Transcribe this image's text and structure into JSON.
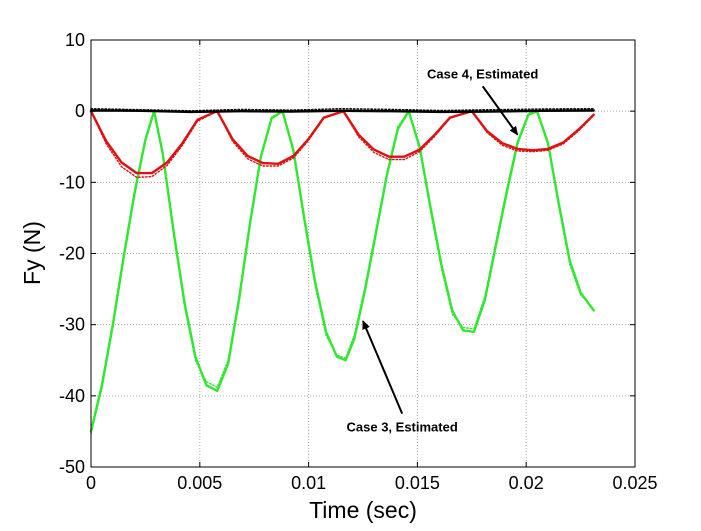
{
  "chart_data": {
    "type": "line",
    "title": "",
    "xlabel": "Time (sec)",
    "ylabel": "Fy (N)",
    "xlim": [
      0,
      0.025
    ],
    "ylim": [
      -50,
      10
    ],
    "xticks": [
      "0",
      "0.005",
      "0.01",
      "0.015",
      "0.02",
      "0.025"
    ],
    "yticks": [
      "10",
      "0",
      "-10",
      "-20",
      "-30",
      "-40",
      "-50"
    ],
    "grid": "dotted",
    "legend": "none",
    "colors": {
      "case3": "#33e633",
      "case4": "#dd1111",
      "black": "#000000",
      "arrow": "#000000"
    },
    "series": [
      {
        "color_key": "case3",
        "style": "solid",
        "x": [
          0.0,
          0.0005,
          0.001,
          0.0015,
          0.002,
          0.0025,
          0.0029,
          0.0033,
          0.0038,
          0.0043,
          0.0048,
          0.0053,
          0.0058,
          0.0063,
          0.0068,
          0.0073,
          0.0078,
          0.0083,
          0.0088,
          0.0093,
          0.0098,
          0.0103,
          0.0108,
          0.0113,
          0.0117,
          0.0121,
          0.0126,
          0.0131,
          0.0136,
          0.0141,
          0.0146,
          0.0151,
          0.0156,
          0.0161,
          0.0166,
          0.0171,
          0.0176,
          0.0181,
          0.0186,
          0.0191,
          0.0196,
          0.0201,
          0.0205,
          0.021,
          0.0215,
          0.022,
          0.0225,
          0.0231
        ],
        "y": [
          -45.0,
          -38.5,
          -30.0,
          -20.5,
          -11.5,
          -4.0,
          0.0,
          -6.0,
          -17.0,
          -27.0,
          -34.5,
          -38.5,
          -39.3,
          -35.5,
          -26.5,
          -16.0,
          -6.5,
          -1.0,
          0.0,
          -5.5,
          -15.0,
          -24.0,
          -31.0,
          -34.5,
          -35.0,
          -32.0,
          -25.0,
          -17.0,
          -9.0,
          -2.5,
          0.0,
          -5.0,
          -13.5,
          -21.5,
          -28.0,
          -30.8,
          -31.0,
          -26.5,
          -19.0,
          -11.5,
          -4.5,
          -0.5,
          0.0,
          -4.5,
          -13.0,
          -21.0,
          -25.5,
          -28.0
        ]
      },
      {
        "color_key": "case3",
        "style": "dotted",
        "x": [
          0.0,
          0.0005,
          0.001,
          0.0015,
          0.002,
          0.0025,
          0.0029,
          0.0033,
          0.0038,
          0.0043,
          0.0048,
          0.0053,
          0.0058,
          0.0063,
          0.0068,
          0.0073,
          0.0078,
          0.0083,
          0.0088,
          0.0093,
          0.0098,
          0.0103,
          0.0108,
          0.0113,
          0.0117,
          0.0121,
          0.0126,
          0.0131,
          0.0136,
          0.0141,
          0.0146,
          0.0151,
          0.0156,
          0.0161,
          0.0166,
          0.0171,
          0.0176,
          0.0181,
          0.0186,
          0.0191,
          0.0196,
          0.0201,
          0.0205,
          0.021,
          0.0215,
          0.022,
          0.0225,
          0.0231
        ],
        "y": [
          -45.3,
          -39.0,
          -30.5,
          -21.0,
          -12.0,
          -4.3,
          0.0,
          -6.3,
          -17.5,
          -27.5,
          -35.0,
          -38.0,
          -38.8,
          -35.0,
          -26.0,
          -15.5,
          -6.2,
          -0.8,
          0.0,
          -5.8,
          -15.5,
          -24.5,
          -31.5,
          -34.3,
          -34.7,
          -31.5,
          -24.5,
          -16.5,
          -8.6,
          -2.2,
          0.0,
          -5.3,
          -14.0,
          -22.0,
          -28.5,
          -30.4,
          -30.6,
          -26.0,
          -18.5,
          -11.0,
          -4.2,
          -0.3,
          0.0,
          -4.8,
          -13.5,
          -21.5,
          -25.8,
          -27.8
        ]
      },
      {
        "color_key": "case4",
        "style": "solid",
        "x": [
          0.0,
          0.0007,
          0.0014,
          0.0021,
          0.0028,
          0.0035,
          0.0042,
          0.0049,
          0.0058,
          0.0065,
          0.0072,
          0.0079,
          0.0086,
          0.0093,
          0.01,
          0.0107,
          0.0116,
          0.0123,
          0.013,
          0.0137,
          0.0144,
          0.0151,
          0.0158,
          0.0165,
          0.0175,
          0.0182,
          0.0189,
          0.0196,
          0.0203,
          0.021,
          0.0217,
          0.0224,
          0.0231
        ],
        "y": [
          0.0,
          -4.2,
          -7.2,
          -8.7,
          -8.7,
          -7.2,
          -4.5,
          -1.2,
          0.0,
          -3.9,
          -6.3,
          -7.3,
          -7.4,
          -6.3,
          -3.9,
          -0.9,
          0.0,
          -3.3,
          -5.4,
          -6.4,
          -6.4,
          -5.4,
          -3.3,
          -0.9,
          0.0,
          -2.8,
          -4.5,
          -5.3,
          -5.5,
          -5.3,
          -4.4,
          -2.6,
          -0.5
        ]
      },
      {
        "color_key": "case4",
        "style": "dotted",
        "x": [
          0.0,
          0.0007,
          0.0014,
          0.0021,
          0.0028,
          0.0035,
          0.0042,
          0.0049,
          0.0058,
          0.0065,
          0.0072,
          0.0079,
          0.0086,
          0.0093,
          0.01,
          0.0107,
          0.0116,
          0.0123,
          0.013,
          0.0137,
          0.0144,
          0.0151,
          0.0158,
          0.0165,
          0.0175,
          0.0182,
          0.0189,
          0.0196,
          0.0203,
          0.021,
          0.0217,
          0.0224,
          0.0231
        ],
        "y": [
          0.0,
          -4.6,
          -7.8,
          -9.3,
          -9.2,
          -7.6,
          -4.8,
          -1.4,
          0.0,
          -4.2,
          -6.7,
          -7.7,
          -7.7,
          -6.6,
          -4.1,
          -1.0,
          0.0,
          -3.6,
          -5.8,
          -6.8,
          -6.8,
          -5.7,
          -3.5,
          -1.0,
          0.0,
          -3.0,
          -4.8,
          -5.6,
          -5.7,
          -5.5,
          -4.6,
          -2.8,
          -0.6
        ]
      },
      {
        "color_key": "black",
        "style": "solid",
        "x": [
          0.0,
          0.0023,
          0.0046,
          0.0069,
          0.0092,
          0.0115,
          0.0138,
          0.0161,
          0.0184,
          0.0207,
          0.0231
        ],
        "y": [
          0.1,
          0.05,
          -0.1,
          0.0,
          -0.05,
          0.05,
          0.0,
          -0.1,
          -0.05,
          0.05,
          0.1
        ]
      },
      {
        "color_key": "black",
        "style": "dotted",
        "x": [
          0.0,
          0.0023,
          0.0046,
          0.0069,
          0.0092,
          0.0115,
          0.0138,
          0.0161,
          0.0184,
          0.0207,
          0.0231
        ],
        "y": [
          0.35,
          0.2,
          0.05,
          0.25,
          0.15,
          0.35,
          0.25,
          0.1,
          0.2,
          0.3,
          0.35
        ]
      }
    ],
    "annotations": [
      {
        "text": "Case 4, Estimated",
        "arrow_tip": [
          0.0196,
          -3.3
        ],
        "arrow_tail": [
          0.018,
          3.5
        ]
      },
      {
        "text": "Case 3, Estimated",
        "arrow_tip": [
          0.0125,
          -29.5
        ],
        "arrow_tail": [
          0.0143,
          -42.5
        ]
      }
    ]
  }
}
